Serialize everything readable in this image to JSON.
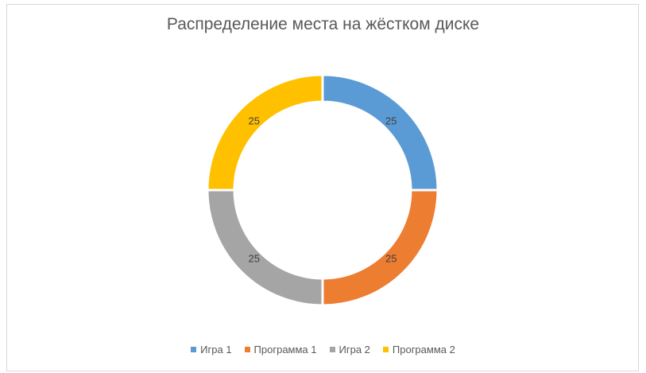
{
  "chart_data": {
    "type": "pie",
    "variant": "doughnut",
    "title": "Распределение места на жёстком диске",
    "categories": [
      "Игра 1",
      "Программа 1",
      "Игра 2",
      "Программа 2"
    ],
    "values": [
      25,
      25,
      25,
      25
    ],
    "data_labels": [
      "25",
      "25",
      "25",
      "25"
    ],
    "colors": [
      "#5b9bd5",
      "#ed7d31",
      "#a5a5a5",
      "#ffc000"
    ],
    "legend_position": "bottom",
    "start_angle": "12 o'clock, clockwise"
  }
}
